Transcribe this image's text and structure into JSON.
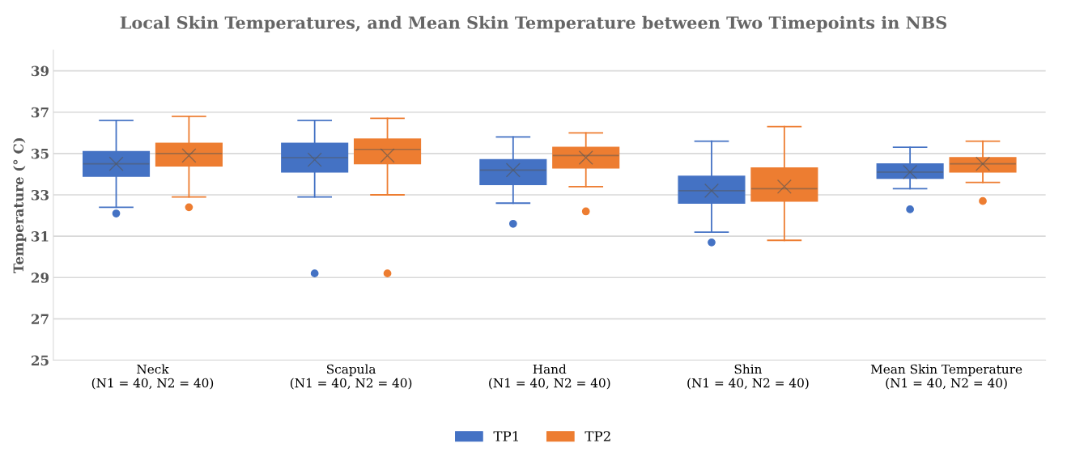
{
  "chart_data": {
    "type": "box",
    "title": "Local Skin Temperatures, and Mean Skin Temperature between Two Timepoints in NBS",
    "ylabel": "Temperature (° C)",
    "categories": [
      "Neck\n(N1 = 40, N2 = 40)",
      "Scapula\n(N1 = 40, N2 = 40)",
      "Hand\n(N1 = 40, N2 = 40)",
      "Shin\n(N1 = 40, N2 = 40)",
      "Mean Skin Temperature\n(N1 = 40, N2 = 40)"
    ],
    "series": [
      {
        "name": "TP1",
        "color": "#4472c4",
        "boxes": [
          {
            "low": 32.4,
            "q1": 33.9,
            "median": 34.5,
            "q3": 35.1,
            "high": 36.6,
            "mean": 34.5,
            "outliers": [
              32.1
            ]
          },
          {
            "low": 32.9,
            "q1": 34.1,
            "median": 34.8,
            "q3": 35.5,
            "high": 36.6,
            "mean": 34.7,
            "outliers": [
              29.2
            ]
          },
          {
            "low": 32.6,
            "q1": 33.5,
            "median": 34.2,
            "q3": 34.7,
            "high": 35.8,
            "mean": 34.2,
            "outliers": [
              31.6
            ]
          },
          {
            "low": 31.2,
            "q1": 32.6,
            "median": 33.2,
            "q3": 33.9,
            "high": 35.6,
            "mean": 33.2,
            "outliers": [
              30.7
            ]
          },
          {
            "low": 33.3,
            "q1": 33.8,
            "median": 34.1,
            "q3": 34.5,
            "high": 35.3,
            "mean": 34.1,
            "outliers": [
              32.3
            ]
          }
        ]
      },
      {
        "name": "TP2",
        "color": "#ed7d31",
        "boxes": [
          {
            "low": 32.9,
            "q1": 34.4,
            "median": 35.0,
            "q3": 35.5,
            "high": 36.8,
            "mean": 34.9,
            "outliers": [
              32.4
            ]
          },
          {
            "low": 33.0,
            "q1": 34.5,
            "median": 35.2,
            "q3": 35.7,
            "high": 36.7,
            "mean": 34.9,
            "outliers": [
              29.2
            ]
          },
          {
            "low": 33.4,
            "q1": 34.3,
            "median": 34.9,
            "q3": 35.3,
            "high": 36.0,
            "mean": 34.8,
            "outliers": [
              32.2
            ]
          },
          {
            "low": 30.8,
            "q1": 32.7,
            "median": 33.3,
            "q3": 34.3,
            "high": 36.3,
            "mean": 33.4
          },
          {
            "low": 33.6,
            "q1": 34.1,
            "median": 34.5,
            "q3": 34.8,
            "high": 35.6,
            "mean": 34.5,
            "outliers": [
              32.7
            ]
          }
        ]
      }
    ],
    "ylim": [
      25,
      40
    ],
    "yticks": [
      25,
      27,
      29,
      31,
      33,
      35,
      37,
      39
    ],
    "grid": "y",
    "legend": "bottom"
  }
}
